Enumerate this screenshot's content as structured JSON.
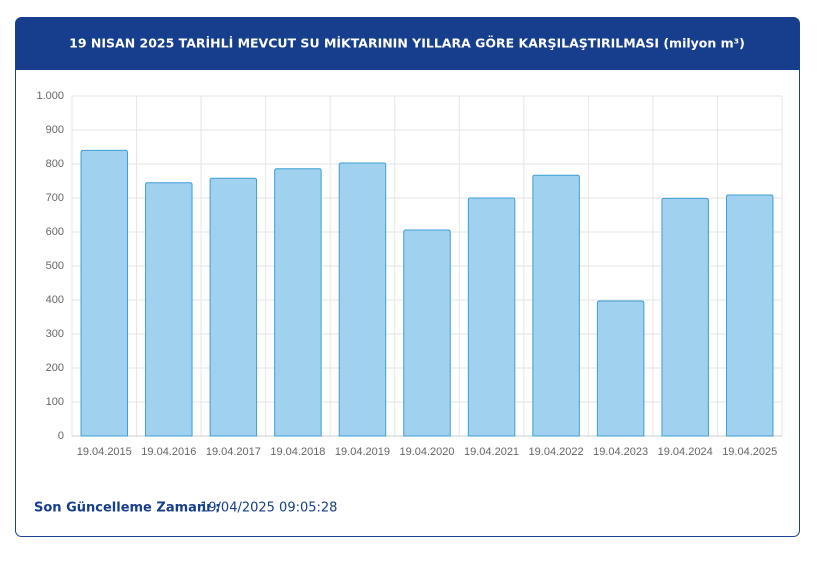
{
  "chart_data": {
    "type": "bar",
    "title": "19 NISAN 2025 TARİHLİ MEVCUT SU MİKTARININ YILLARA GÖRE KARŞILAŞTIRILMASI (milyon m³)",
    "categories": [
      "19.04.2015",
      "19.04.2016",
      "19.04.2017",
      "19.04.2018",
      "19.04.2019",
      "19.04.2020",
      "19.04.2021",
      "19.04.2022",
      "19.04.2023",
      "19.04.2024",
      "19.04.2025"
    ],
    "values": [
      840,
      745,
      758,
      786,
      803,
      606,
      700,
      767,
      397,
      699,
      709
    ],
    "color": "#a0d1ee",
    "edge_color": "#3c9fd5",
    "ylim": [
      0,
      1000
    ],
    "yticks": [
      0,
      100,
      200,
      300,
      400,
      500,
      600,
      700,
      800,
      900,
      {
        "value": 1000,
        "label": "1.000"
      }
    ],
    "grid": true
  },
  "footer": {
    "label": "Son Güncelleme Zamanı :",
    "value": "19/04/2025 09:05:28"
  }
}
